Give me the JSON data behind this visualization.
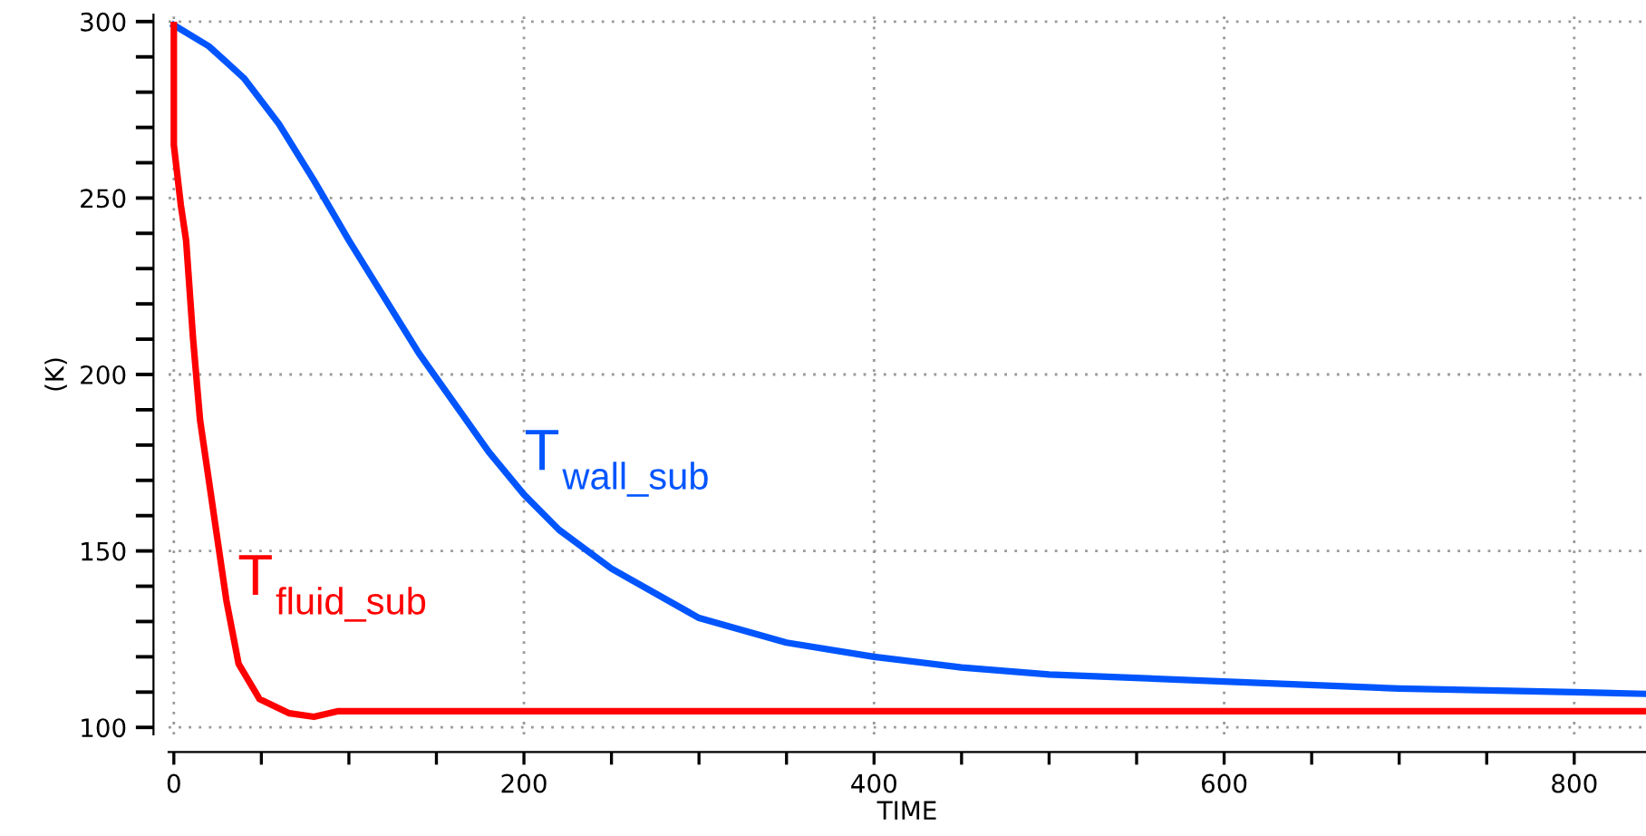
{
  "chart_data": {
    "type": "line",
    "xlabel": "TIME",
    "ylabel": "(K)",
    "xlim": [
      -3,
      841
    ],
    "ylim": [
      98,
      302
    ],
    "xticks": [
      0,
      {
        "value": 50,
        "label": null
      },
      {
        "value": 100,
        "label": null
      },
      {
        "value": 150,
        "label": null
      },
      200,
      {
        "value": 250,
        "label": null
      },
      {
        "value": 300,
        "label": null
      },
      {
        "value": 350,
        "label": null
      },
      400,
      {
        "value": 450,
        "label": null
      },
      {
        "value": 500,
        "label": null
      },
      {
        "value": 550,
        "label": null
      },
      600,
      {
        "value": 650,
        "label": null
      },
      {
        "value": 700,
        "label": null
      },
      {
        "value": 750,
        "label": null
      },
      800
    ],
    "yticks": [
      100,
      {
        "value": 110,
        "label": null
      },
      {
        "value": 120,
        "label": null
      },
      {
        "value": 130,
        "label": null
      },
      {
        "value": 140,
        "label": null
      },
      150,
      {
        "value": 160,
        "label": null
      },
      {
        "value": 170,
        "label": null
      },
      {
        "value": 180,
        "label": null
      },
      {
        "value": 190,
        "label": null
      },
      200,
      {
        "value": 210,
        "label": null
      },
      {
        "value": 220,
        "label": null
      },
      {
        "value": 230,
        "label": null
      },
      {
        "value": 240,
        "label": null
      },
      250,
      {
        "value": 260,
        "label": null
      },
      {
        "value": 270,
        "label": null
      },
      {
        "value": 280,
        "label": null
      },
      {
        "value": 290,
        "label": null
      },
      300
    ],
    "grid": true,
    "marker": "none",
    "line_style": "solid",
    "series": [
      {
        "name": "T$_{wall_sub}$",
        "color": "#0055ff",
        "x": [
          0,
          20,
          40,
          60,
          80,
          100,
          120,
          140,
          160,
          180,
          200,
          220,
          250,
          300,
          350,
          400,
          450,
          500,
          600,
          700,
          800,
          841
        ],
        "values": [
          299,
          293,
          284,
          271,
          255,
          238,
          222,
          206,
          192,
          178,
          166,
          156,
          145,
          131,
          124,
          120,
          117,
          115,
          113,
          111,
          110,
          109.5
        ]
      },
      {
        "name": "T$_{fluid_sub}$",
        "color": "#ff0000",
        "x": [
          0,
          0,
          4,
          7,
          11,
          15,
          20,
          25,
          30,
          37,
          49,
          66,
          80,
          94,
          841
        ],
        "values": [
          299,
          265,
          248,
          238,
          210,
          187,
          170,
          153,
          136,
          118,
          108,
          104,
          103,
          104.6,
          104.6
        ]
      }
    ]
  }
}
